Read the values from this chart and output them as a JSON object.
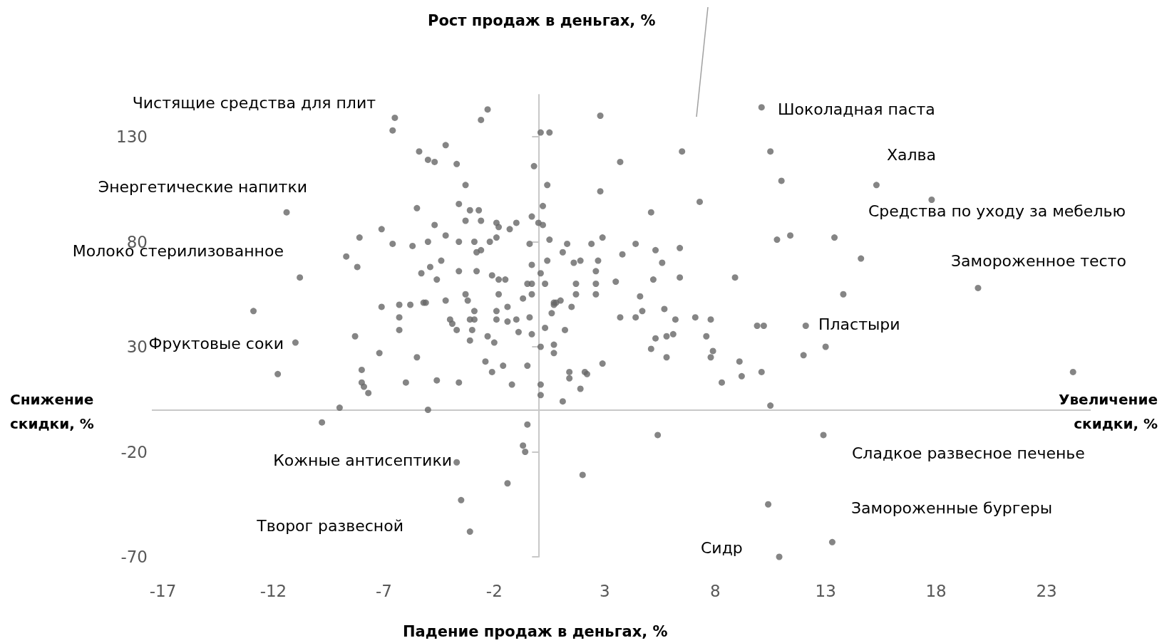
{
  "chart_data": {
    "type": "scatter",
    "ylabel": "Рост продаж в деньгах, %",
    "xlabel": "Падение продаж в деньгах, %",
    "xlim": [
      -17.5,
      25
    ],
    "ylim": [
      -70,
      150
    ],
    "xticks": [
      -17,
      -12,
      -7,
      -2,
      3,
      8,
      13,
      18,
      23
    ],
    "yticks": [
      -70,
      -20,
      30,
      80,
      130
    ],
    "marker": "circle",
    "color": "#666666",
    "ref_lines": [
      {
        "axis": "y",
        "value": 0,
        "color": "#c8c8c8"
      }
    ],
    "x": [
      -6.5,
      -6.6,
      -2.3,
      -2.6,
      -5.4,
      -4.2,
      -5.0,
      -4.7,
      -3.7,
      0.1,
      0.5,
      -0.2,
      2.8,
      3.7,
      6.5,
      10.1,
      10.5,
      11.0,
      15.3,
      17.8,
      -11.4,
      -3.3,
      0.4,
      2.8,
      -5.5,
      -3.6,
      -3.1,
      -2.7,
      -3.3,
      -2.6,
      -1.9,
      -1.0,
      -1.8,
      -1.3,
      0.2,
      -0.3,
      0.0,
      0.2,
      7.3,
      5.1,
      -4.7,
      -7.1,
      -8.1,
      -6.6,
      -5.7,
      -5.0,
      -4.2,
      -3.6,
      -2.9,
      -2.2,
      -1.9,
      -0.4,
      0.5,
      1.3,
      2.4,
      2.9,
      4.4,
      5.3,
      6.4,
      10.8,
      11.4,
      13.4,
      -8.7,
      -8.2,
      -4.4,
      -5.3,
      -4.9,
      -4.6,
      -3.6,
      -2.8,
      -2.6,
      -2.8,
      -2.1,
      -1.8,
      -1.5,
      -0.3,
      0.4,
      1.1,
      1.6,
      1.9,
      2.7,
      3.8,
      5.6,
      2.6,
      -0.3,
      0.1,
      0.3,
      -0.5,
      1.7,
      2.6,
      3.5,
      5.2,
      6.4,
      8.9,
      14.6,
      -10.8,
      19.9,
      -3.3,
      -4.2,
      -3.2,
      -1.8,
      -0.7,
      -0.3,
      0.7,
      1.0,
      1.7,
      2.6,
      4.6,
      13.8,
      -12.9,
      -7.1,
      -6.3,
      -5.8,
      -5.2,
      -5.1,
      -2.9,
      -1.9,
      -1.4,
      0.7,
      0.8,
      0.6,
      1.5,
      4.7,
      5.7,
      -6.3,
      -4.0,
      -3.1,
      -2.9,
      -1.9,
      -1.4,
      -1.0,
      -0.4,
      -3.9,
      -3.7,
      -3.0,
      0.3,
      1.2,
      3.7,
      4.4,
      6.2,
      7.1,
      7.8,
      9.9,
      10.2,
      12.1,
      7.6,
      7.9,
      5.3,
      5.8,
      6.1,
      5.1,
      -8.3,
      -6.3,
      -3.1,
      -2.3,
      -2.0,
      -0.9,
      -0.3,
      0.7,
      0.7,
      -11.0,
      -7.2,
      -5.5,
      -2.4,
      -1.6,
      -0.5,
      0.1,
      13.0,
      12.0,
      5.8,
      7.8,
      9.1,
      2.9,
      1.4,
      2.1,
      2.2,
      -2.1,
      -8.0,
      -11.8,
      -8.0,
      -7.9,
      -7.7,
      -6.0,
      -4.6,
      -3.6,
      -1.2,
      0.1,
      0.1,
      1.1,
      1.9,
      1.4,
      8.3,
      9.2,
      10.1,
      24.2,
      10.5,
      -9.0,
      -5.0,
      -9.8,
      -0.5,
      5.4,
      12.9,
      -0.7,
      -0.6,
      -3.7,
      2.0,
      -1.4,
      -3.5,
      10.4,
      -3.1,
      13.3,
      10.9
    ],
    "values": [
      139,
      133,
      143,
      138,
      123,
      126,
      119,
      118,
      117,
      132,
      132,
      116,
      140,
      118,
      123,
      144,
      123,
      109,
      107,
      100,
      94,
      107,
      107,
      104,
      96,
      98,
      95,
      95,
      90,
      90,
      89,
      89,
      87,
      86,
      97,
      92,
      89,
      88,
      99,
      94,
      88,
      86,
      82,
      79,
      78,
      80,
      83,
      80,
      80,
      80,
      82,
      79,
      81,
      79,
      79,
      82,
      79,
      76,
      77,
      81,
      83,
      82,
      73,
      68,
      71,
      65,
      68,
      62,
      66,
      66,
      76,
      75,
      64,
      62,
      62,
      69,
      71,
      75,
      70,
      71,
      71,
      74,
      70,
      66,
      60,
      65,
      60,
      60,
      60,
      60,
      61,
      62,
      63,
      63,
      72,
      63,
      58,
      55,
      52,
      52,
      55,
      53,
      55,
      51,
      52,
      55,
      55,
      54,
      55,
      47,
      49,
      50,
      50,
      51,
      51,
      47,
      47,
      49,
      50,
      51,
      46,
      49,
      47,
      48,
      44,
      43,
      43,
      43,
      43,
      42,
      43,
      44,
      41,
      38,
      38,
      39,
      38,
      44,
      44,
      43,
      44,
      43,
      40,
      40,
      40,
      35,
      28,
      34,
      35,
      36,
      29,
      35,
      38,
      33,
      35,
      32,
      37,
      36,
      31,
      27,
      32,
      27,
      25,
      23,
      21,
      21,
      30,
      30,
      26,
      25,
      25,
      23,
      22,
      18,
      18,
      17,
      18,
      19,
      17,
      13,
      11,
      8,
      13,
      14,
      13,
      12,
      12,
      7,
      4,
      10,
      15,
      13,
      16,
      18,
      18,
      2,
      1,
      0,
      -6,
      -7,
      -12,
      -12,
      -17,
      -20,
      -25,
      -31,
      -35,
      -43,
      -45,
      -58,
      -63,
      -70
    ],
    "annotations": [
      "Снижение скидки, %",
      "Увеличение скидки, %",
      "Чистящие средства для плит",
      "Энергетические напитки",
      "Молоко стерилизованное",
      "Фруктовые соки",
      "Кожные антисептики",
      "Творог развесной",
      "Шоколадная паста",
      "Халва",
      "Средства по уходу за мебелью",
      "Замороженное тесто",
      "Пластыри",
      "Сладкое развесное печенье",
      "Замороженные бургеры",
      "Сидр"
    ]
  }
}
